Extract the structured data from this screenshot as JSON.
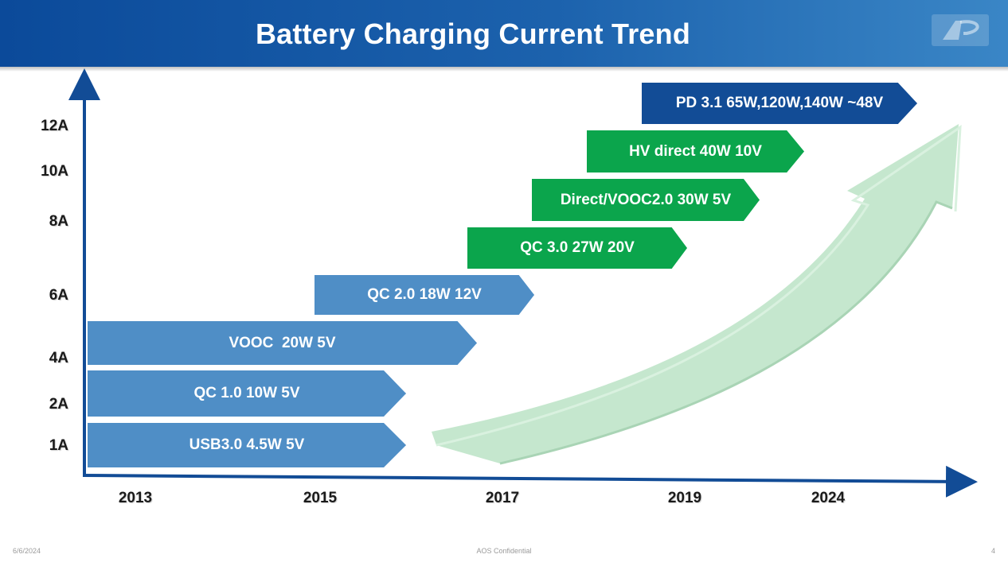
{
  "slide": {
    "title": "Battery Charging Current Trend",
    "footer_date": "6/6/2024",
    "footer_center": "AOS Confidential",
    "page_number": "4"
  },
  "chart_data": {
    "type": "timeline",
    "y_axis_labels": [
      "12A",
      "10A",
      "8A",
      "6A",
      "4A",
      "2A",
      "1A"
    ],
    "x_axis_labels": [
      "2013",
      "2015",
      "2017",
      "2019",
      "2024"
    ],
    "entries": [
      {
        "label": "USB3.0 4.5W 5V",
        "color": "#4f8ec6"
      },
      {
        "label": "QC 1.0 10W 5V",
        "color": "#4f8ec6"
      },
      {
        "label": "VOOC  20W 5V",
        "color": "#4f8ec6"
      },
      {
        "label": "QC 2.0 18W 12V",
        "color": "#4f8ec6"
      },
      {
        "label": "QC 3.0 27W 20V",
        "color": "#0ba54c"
      },
      {
        "label": "Direct/VOOC2.0 30W 5V",
        "color": "#0ba54c"
      },
      {
        "label": "HV direct 40W 10V",
        "color": "#0ba54c"
      },
      {
        "label": "PD 3.1 65W,120W,140W ~48V",
        "color": "#124c96"
      }
    ],
    "trend_arrow_color": "#c7ead1",
    "axis_color": "#124c96"
  }
}
